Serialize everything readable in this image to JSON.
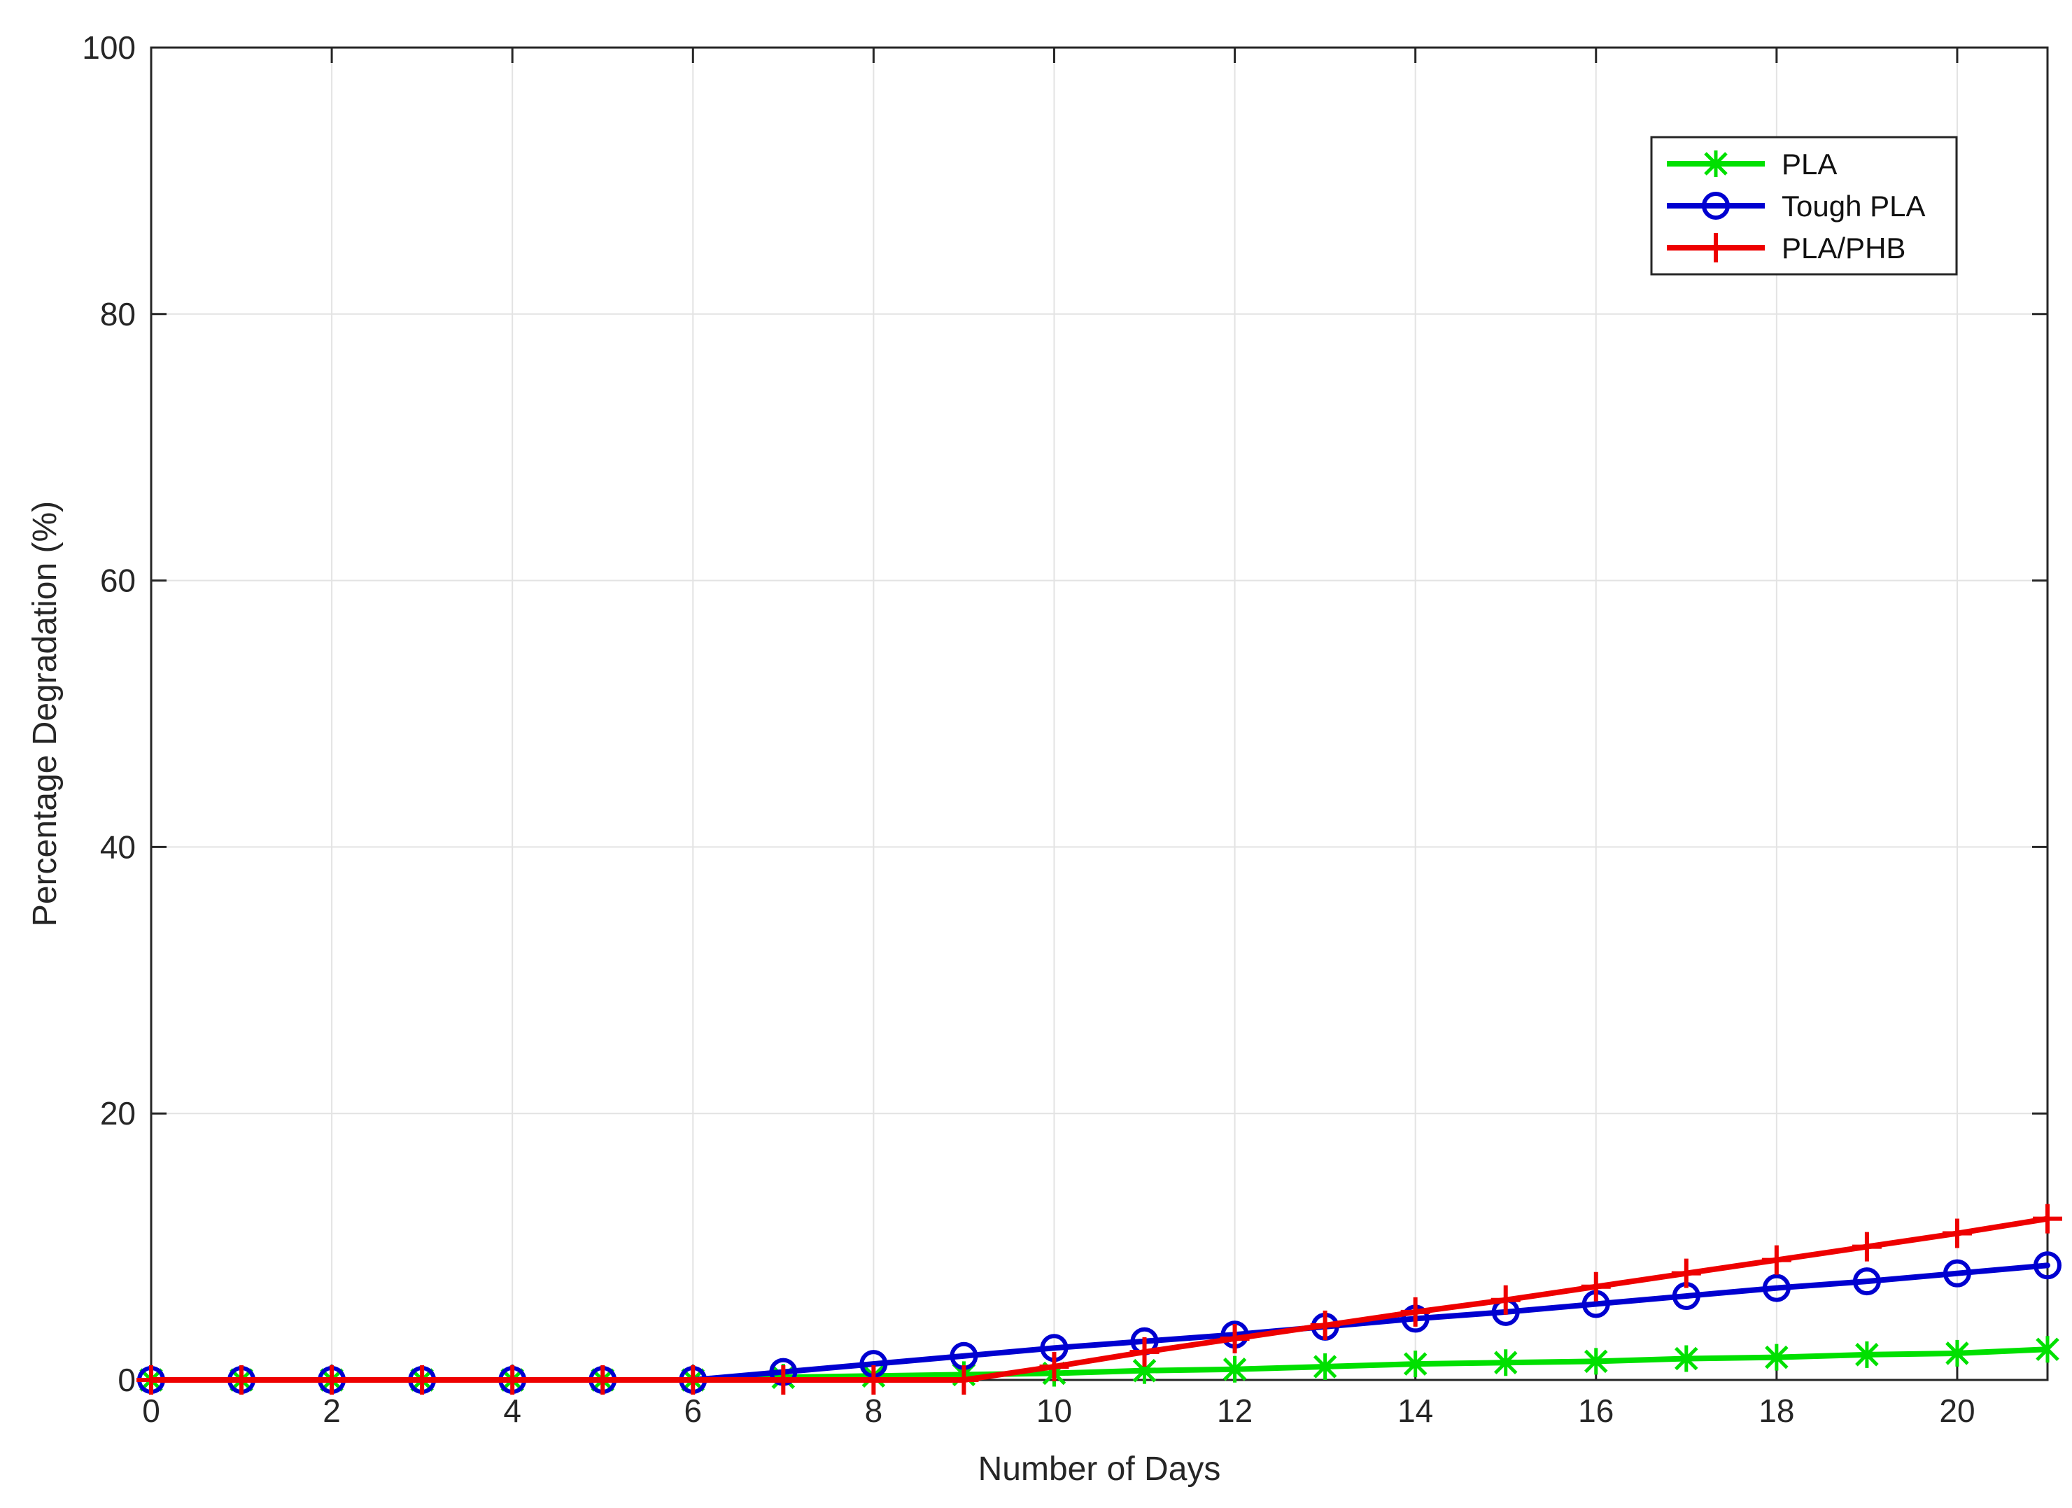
{
  "chart_data": {
    "type": "line",
    "title": "",
    "xlabel": "Number of Days",
    "ylabel": "Percentage Degradation (%)",
    "xlim": [
      0,
      21
    ],
    "ylim": [
      0,
      100
    ],
    "xticks": [
      0,
      2,
      4,
      6,
      8,
      10,
      12,
      14,
      16,
      18,
      20
    ],
    "yticks": [
      0,
      20,
      40,
      60,
      80,
      100
    ],
    "grid": true,
    "legend_position": "top-right",
    "x": [
      0,
      1,
      2,
      3,
      4,
      5,
      6,
      7,
      8,
      9,
      10,
      11,
      12,
      13,
      14,
      15,
      16,
      17,
      18,
      19,
      20,
      21
    ],
    "series": [
      {
        "name": "PLA",
        "color": "#00e000",
        "marker": "star",
        "values": [
          0,
          0,
          0,
          0,
          0,
          0,
          0,
          0.2,
          0.3,
          0.4,
          0.5,
          0.7,
          0.8,
          1.0,
          1.2,
          1.3,
          1.4,
          1.6,
          1.7,
          1.9,
          2.0,
          2.3
        ]
      },
      {
        "name": "Tough PLA",
        "color": "#0000d0",
        "marker": "circle",
        "values": [
          0,
          0,
          0,
          0,
          0,
          0,
          0,
          0.6,
          1.2,
          1.8,
          2.4,
          2.9,
          3.4,
          4.0,
          4.6,
          5.1,
          5.7,
          6.3,
          6.9,
          7.4,
          8.0,
          8.6
        ]
      },
      {
        "name": "PLA/PHB",
        "color": "#ee0000",
        "marker": "plus",
        "values": [
          0,
          0,
          0,
          0,
          0,
          0,
          0,
          0,
          0,
          0,
          1.0,
          2.1,
          3.1,
          4.1,
          5.1,
          6.0,
          7.0,
          8.0,
          9.0,
          10.0,
          11.0,
          12.1
        ]
      }
    ]
  }
}
